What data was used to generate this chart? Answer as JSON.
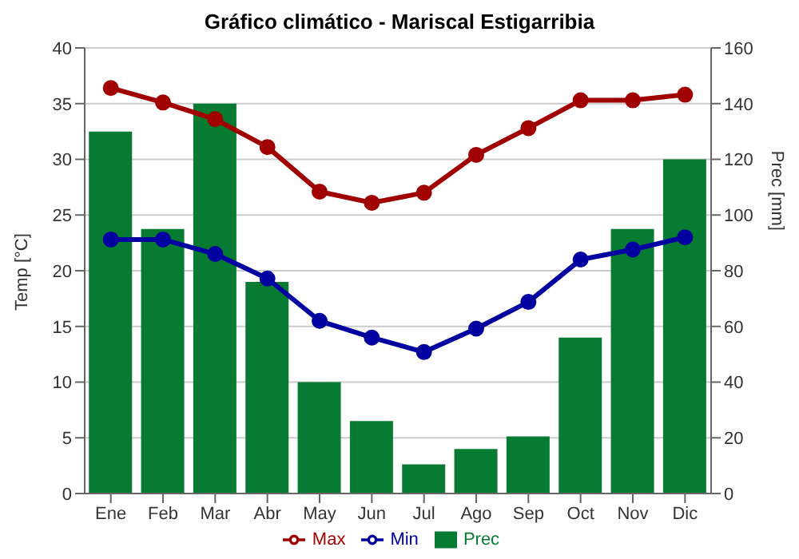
{
  "chart_data": {
    "type": "line",
    "title": "Gráfico climático - Mariscal Estigarribia",
    "ylabel": "Temp [°C]",
    "y2label": "Prec [mm]",
    "categories": [
      "Ene",
      "Feb",
      "Mar",
      "Abr",
      "May",
      "Jun",
      "Jul",
      "Ago",
      "Sep",
      "Oct",
      "Nov",
      "Dic"
    ],
    "series": [
      {
        "name": "Prec",
        "type": "bar",
        "axis": "y2",
        "color": "#077b32",
        "values": [
          130,
          95,
          140,
          76,
          40,
          26,
          10.5,
          16,
          20.5,
          56,
          95,
          120
        ]
      },
      {
        "name": "Min",
        "color": "#0000a0",
        "values": [
          22.8,
          22.8,
          21.5,
          19.3,
          15.5,
          14.0,
          12.7,
          14.8,
          17.2,
          21.0,
          21.9,
          23.0
        ]
      },
      {
        "name": "Max",
        "color": "#a00000",
        "values": [
          36.4,
          35.1,
          33.6,
          31.1,
          27.1,
          26.1,
          27.0,
          30.4,
          32.8,
          35.3,
          35.3,
          35.8
        ]
      }
    ],
    "ylim": [
      0,
      40
    ],
    "yticks": [
      0,
      5,
      10,
      15,
      20,
      25,
      30,
      35,
      40
    ],
    "y2lim": [
      0,
      160
    ],
    "y2ticks": [
      0,
      20,
      40,
      60,
      80,
      100,
      120,
      140,
      160
    ],
    "grid": "y",
    "legend": "bottom",
    "marker": "circle",
    "line_style": "solid"
  }
}
